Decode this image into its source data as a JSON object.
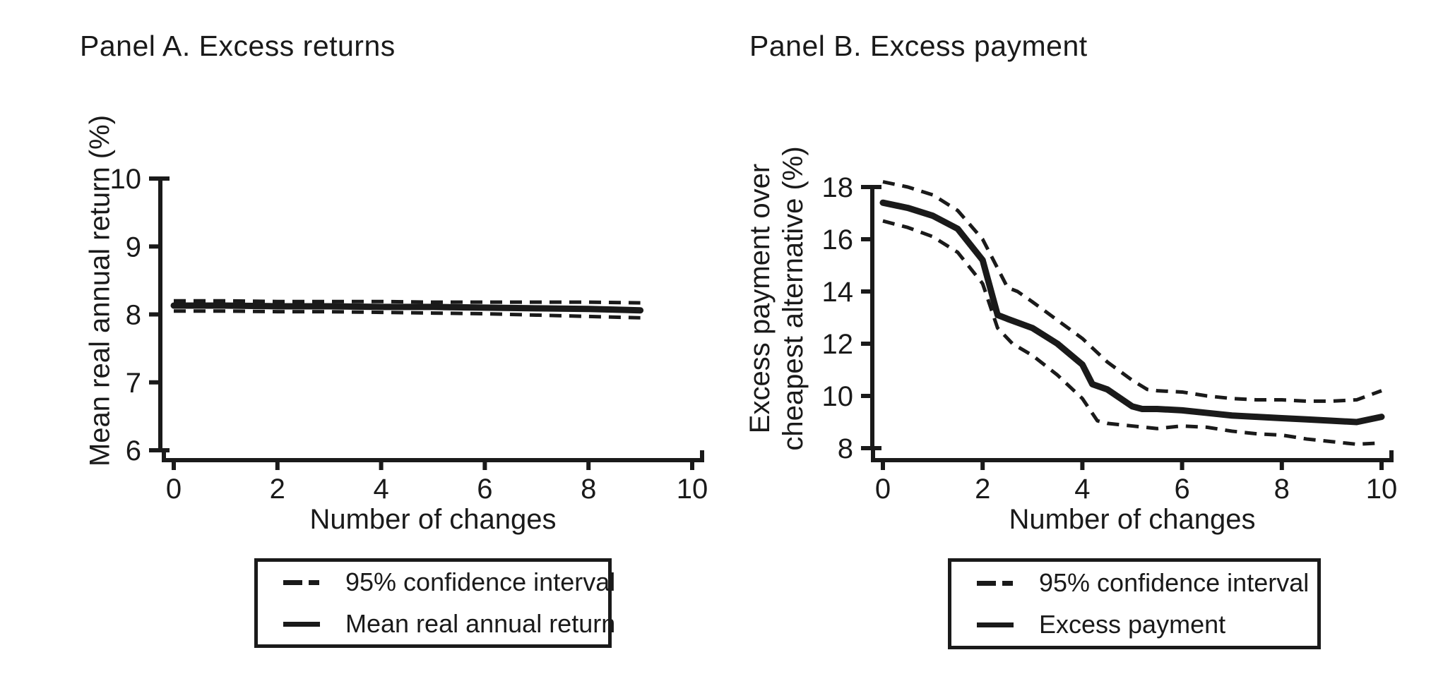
{
  "page": {
    "background": "#ffffff",
    "ink_color": "#1a1a1a"
  },
  "chart_data": [
    {
      "id": "a",
      "type": "line",
      "title": "Panel A. Excess returns",
      "xlabel": "Number of changes",
      "ylabel": "Mean real annual return (%)",
      "xlim": [
        0,
        10
      ],
      "ylim": [
        6,
        10
      ],
      "xticks": [
        0,
        2,
        4,
        6,
        8,
        10
      ],
      "yticks": [
        6,
        7,
        8,
        9,
        10
      ],
      "grid": false,
      "legend_position": "below",
      "legend": [
        {
          "style": "dashed",
          "label": "95% confidence interval"
        },
        {
          "style": "solid",
          "label": "Mean real annual return"
        }
      ],
      "series": [
        {
          "name": "95% confidence interval (upper)",
          "style": "dashed",
          "x": [
            0,
            1,
            2,
            3,
            4,
            5,
            6,
            7,
            8,
            9
          ],
          "y": [
            8.2,
            8.2,
            8.19,
            8.19,
            8.19,
            8.18,
            8.18,
            8.18,
            8.18,
            8.17
          ]
        },
        {
          "name": "Mean real annual return",
          "style": "solid",
          "x": [
            0,
            1,
            2,
            3,
            4,
            5,
            6,
            7,
            8,
            9
          ],
          "y": [
            8.13,
            8.13,
            8.12,
            8.12,
            8.11,
            8.11,
            8.1,
            8.09,
            8.08,
            8.06
          ]
        },
        {
          "name": "95% confidence interval (lower)",
          "style": "dashed",
          "x": [
            0,
            1,
            2,
            3,
            4,
            5,
            6,
            7,
            8,
            9
          ],
          "y": [
            8.05,
            8.05,
            8.04,
            8.04,
            8.03,
            8.02,
            8.01,
            7.99,
            7.97,
            7.95
          ]
        }
      ]
    },
    {
      "id": "b",
      "type": "line",
      "title": "Panel B. Excess payment",
      "xlabel": "Number of changes",
      "ylabel": "Excess payment over\ncheapest alternative (%)",
      "xlim": [
        0,
        10
      ],
      "ylim": [
        8,
        18
      ],
      "xticks": [
        0,
        2,
        4,
        6,
        8,
        10
      ],
      "yticks": [
        8,
        10,
        12,
        14,
        16,
        18
      ],
      "grid": false,
      "legend_position": "below",
      "legend": [
        {
          "style": "dashed",
          "label": "95% confidence interval"
        },
        {
          "style": "solid",
          "label": "Excess payment"
        }
      ],
      "series": [
        {
          "name": "95% confidence interval (upper)",
          "style": "dashed",
          "x": [
            0,
            0.5,
            1,
            1.5,
            2,
            2.5,
            2.7,
            3,
            3.5,
            4,
            4.5,
            5,
            5.3,
            5.5,
            6,
            6.5,
            7,
            7.5,
            8,
            8.5,
            9,
            9.5,
            10
          ],
          "y": [
            18.2,
            18.0,
            17.7,
            17.1,
            16.0,
            14.15,
            14.0,
            13.6,
            12.9,
            12.2,
            11.3,
            10.6,
            10.25,
            10.2,
            10.15,
            10.0,
            9.9,
            9.85,
            9.85,
            9.8,
            9.8,
            9.85,
            10.2
          ]
        },
        {
          "name": "Excess payment",
          "style": "solid",
          "x": [
            0,
            0.5,
            1,
            1.5,
            2,
            2.3,
            2.5,
            3,
            3.5,
            4,
            4.2,
            4.5,
            5,
            5.2,
            5.5,
            6,
            6.5,
            7,
            7.5,
            8,
            8.5,
            9,
            9.5,
            10
          ],
          "y": [
            17.4,
            17.2,
            16.9,
            16.4,
            15.2,
            13.1,
            12.95,
            12.6,
            12.0,
            11.2,
            10.45,
            10.25,
            9.6,
            9.5,
            9.5,
            9.45,
            9.35,
            9.25,
            9.2,
            9.15,
            9.1,
            9.05,
            9.0,
            9.2
          ]
        },
        {
          "name": "95% confidence interval (lower)",
          "style": "dashed",
          "x": [
            0,
            0.5,
            1,
            1.5,
            2,
            2.3,
            2.6,
            3,
            3.5,
            4,
            4.3,
            4.5,
            5,
            5.5,
            6,
            6.5,
            7,
            7.5,
            8,
            8.5,
            9,
            9.5,
            10
          ],
          "y": [
            16.7,
            16.45,
            16.1,
            15.5,
            14.3,
            12.6,
            12.0,
            11.55,
            10.8,
            9.9,
            9.05,
            8.95,
            8.85,
            8.75,
            8.85,
            8.8,
            8.65,
            8.55,
            8.5,
            8.35,
            8.25,
            8.15,
            8.2
          ]
        }
      ]
    }
  ]
}
